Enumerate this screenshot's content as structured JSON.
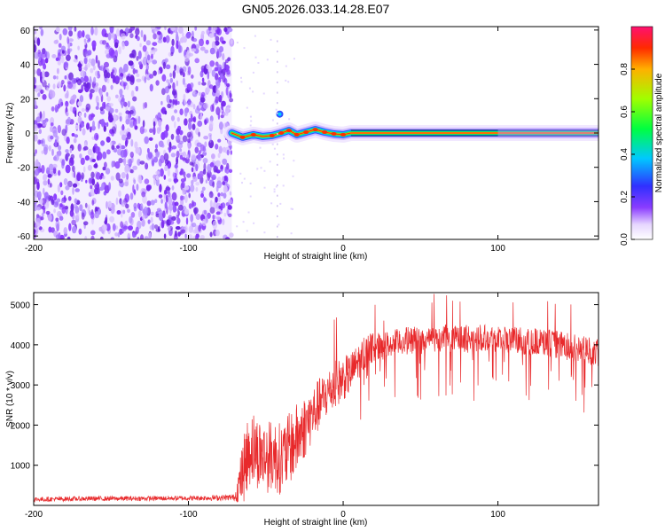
{
  "title": "GN05.2026.033.14.28.E07",
  "chart_data": [
    {
      "type": "heatmap",
      "xlabel": "Height of straight line (km)",
      "ylabel": "Frequency (Hz)",
      "xlim": [
        -200,
        165
      ],
      "ylim": [
        -62,
        62
      ],
      "xticks": [
        -200,
        -100,
        0,
        100
      ],
      "yticks": [
        60,
        40,
        20,
        0,
        -20,
        -40,
        -60
      ],
      "noise_region_x": [
        -200,
        -72
      ],
      "signal_track": {
        "start_x": -72,
        "end_x": 165,
        "frequency": 0,
        "points": [
          {
            "x": -72,
            "f": 0.0
          },
          {
            "x": -65,
            "f": -2.5
          },
          {
            "x": -58,
            "f": -1.0
          },
          {
            "x": -52,
            "f": -2.0
          },
          {
            "x": -46,
            "f": -1.5
          },
          {
            "x": -40,
            "f": 0.0
          },
          {
            "x": -35,
            "f": 1.5
          },
          {
            "x": -30,
            "f": -1.0
          },
          {
            "x": -24,
            "f": 0.5
          },
          {
            "x": -18,
            "f": 2.0
          },
          {
            "x": -12,
            "f": 0.5
          },
          {
            "x": -6,
            "f": -0.5
          },
          {
            "x": 0,
            "f": -1.0
          },
          {
            "x": 5,
            "f": 0.0
          },
          {
            "x": 165,
            "f": 0.0
          }
        ],
        "burst": {
          "x": -41,
          "f": 11
        }
      },
      "colorbar": {
        "label": "Normalized spectral amplitude",
        "ticks": [
          0.0,
          0.2,
          0.4,
          0.6,
          0.8
        ],
        "range": [
          0,
          1
        ]
      }
    },
    {
      "type": "line",
      "xlabel": "Height of straight line (km)",
      "ylabel": "SNR (10 * v/v)",
      "xlim": [
        -200,
        165
      ],
      "ylim": [
        0,
        5300
      ],
      "xticks": [
        -200,
        -100,
        0,
        100
      ],
      "yticks": [
        1000,
        2000,
        3000,
        4000,
        5000
      ],
      "color": "#e8292b",
      "series": [
        {
          "name": "SNR",
          "x": [
            -200,
            -180,
            -160,
            -140,
            -120,
            -100,
            -80,
            -70,
            -65,
            -60,
            -55,
            -50,
            -45,
            -40,
            -35,
            -30,
            -25,
            -20,
            -15,
            -10,
            -5,
            0,
            5,
            10,
            15,
            20,
            30,
            40,
            50,
            60,
            70,
            80,
            90,
            100,
            110,
            120,
            130,
            140,
            150,
            160,
            165
          ],
          "mean": [
            150,
            160,
            170,
            170,
            175,
            180,
            190,
            200,
            800,
            1500,
            1300,
            1200,
            1250,
            1150,
            1400,
            1650,
            1950,
            2250,
            2550,
            2800,
            3000,
            3150,
            3300,
            3600,
            3850,
            3950,
            4000,
            4100,
            4100,
            4150,
            4150,
            4150,
            4200,
            4150,
            4100,
            4100,
            4050,
            4000,
            3900,
            3850,
            3800
          ],
          "spread": [
            60,
            60,
            60,
            60,
            60,
            60,
            70,
            80,
            800,
            1000,
            900,
            900,
            900,
            900,
            900,
            900,
            800,
            700,
            650,
            600,
            600,
            550,
            500,
            450,
            400,
            350,
            350,
            350,
            350,
            350,
            350,
            350,
            350,
            350,
            350,
            350,
            350,
            350,
            350,
            350,
            350
          ]
        }
      ]
    }
  ]
}
